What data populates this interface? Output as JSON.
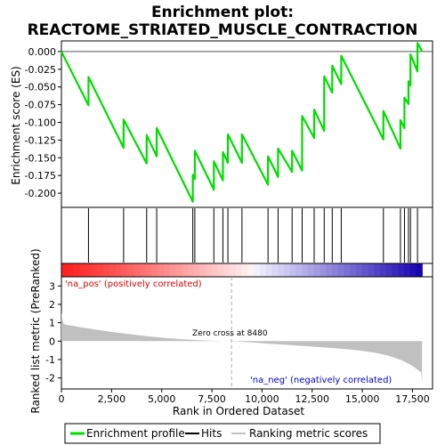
{
  "chart_data": {
    "type": "line",
    "title_line1": "Enrichment plot:",
    "title_line2": "REACTOME_STRIATED_MUSCLE_CONTRACTION",
    "es_panel": {
      "ylabel": "Enrichment score (ES)",
      "ylim": [
        -0.22,
        0.015
      ],
      "yticks": [
        0.0,
        -0.025,
        -0.05,
        -0.075,
        -0.1,
        -0.125,
        -0.15,
        -0.175,
        -0.2
      ],
      "ytick_labels": [
        "0.000",
        "-0.025",
        "-0.050",
        "-0.075",
        "-0.100",
        "-0.125",
        "-0.150",
        "-0.175",
        "-0.200"
      ],
      "grid": false,
      "line_color": "#00dd00"
    },
    "hits": [
      1350,
      3100,
      4250,
      4750,
      6550,
      6650,
      7600,
      8050,
      8300,
      9000,
      10300,
      10800,
      11500,
      12000,
      12600,
      13100,
      13500,
      13950,
      16050,
      16900,
      17100,
      17300,
      17400,
      17750
    ],
    "es_profile": {
      "x": [
        0,
        1349,
        1350,
        3099,
        3100,
        4249,
        4250,
        4749,
        4750,
        6549,
        6550,
        6649,
        6650,
        7599,
        7600,
        8049,
        8050,
        8299,
        8300,
        8999,
        9000,
        10299,
        10300,
        10799,
        10800,
        11499,
        11500,
        11999,
        12000,
        12599,
        12600,
        13099,
        13100,
        13499,
        13500,
        13949,
        13950,
        16049,
        16050,
        16899,
        16900,
        17099,
        17100,
        17299,
        17300,
        17399,
        17400,
        17749,
        17750,
        17980
      ],
      "y": [
        0.0,
        -0.076,
        -0.036,
        -0.136,
        -0.096,
        -0.158,
        -0.118,
        -0.148,
        -0.108,
        -0.212,
        -0.174,
        -0.18,
        -0.14,
        -0.195,
        -0.155,
        -0.182,
        -0.142,
        -0.157,
        -0.117,
        -0.157,
        -0.117,
        -0.188,
        -0.148,
        -0.177,
        -0.137,
        -0.17,
        -0.14,
        -0.168,
        -0.091,
        -0.122,
        -0.082,
        -0.112,
        -0.035,
        -0.058,
        -0.02,
        -0.046,
        -0.006,
        -0.124,
        -0.084,
        -0.137,
        -0.097,
        -0.108,
        -0.065,
        -0.074,
        -0.042,
        -0.048,
        -0.004,
        -0.028,
        0.012,
        0.0
      ]
    },
    "rank_metric": {
      "ylabel": "Ranked list metric (PreRanked)",
      "xlabel": "Rank in Dataset",
      "xlabel_full": "Rank in Ordered Dataset",
      "ylim": [
        -2.6,
        3.5
      ],
      "yticks": [
        3,
        2,
        1,
        0,
        -1,
        -2
      ],
      "xlim": [
        0,
        18500
      ],
      "xticks": [
        0,
        2500,
        5000,
        7500,
        10000,
        12500,
        15000,
        17500
      ],
      "xtick_labels": [
        "0",
        "2,500",
        "5,000",
        "7,500",
        "10,000",
        "12,500",
        "15,000",
        "17,500"
      ],
      "n_genes": 17980,
      "fill_color": "#c0c0c0",
      "pos_label": "'na_pos' (positively correlated)",
      "neg_label": "'na_neg' (negatively correlated)",
      "zero_cross_label": "Zero cross at 8480",
      "zero_cross": 8480
    },
    "legend": {
      "placement": "bottom",
      "entries": [
        {
          "label": "Enrichment profile",
          "color": "#00dd00",
          "kind": "line"
        },
        {
          "label": "Hits",
          "color": "#000000",
          "kind": "line"
        },
        {
          "label": "Ranking metric scores",
          "color": "#c0c0c0",
          "kind": "line"
        }
      ]
    }
  }
}
